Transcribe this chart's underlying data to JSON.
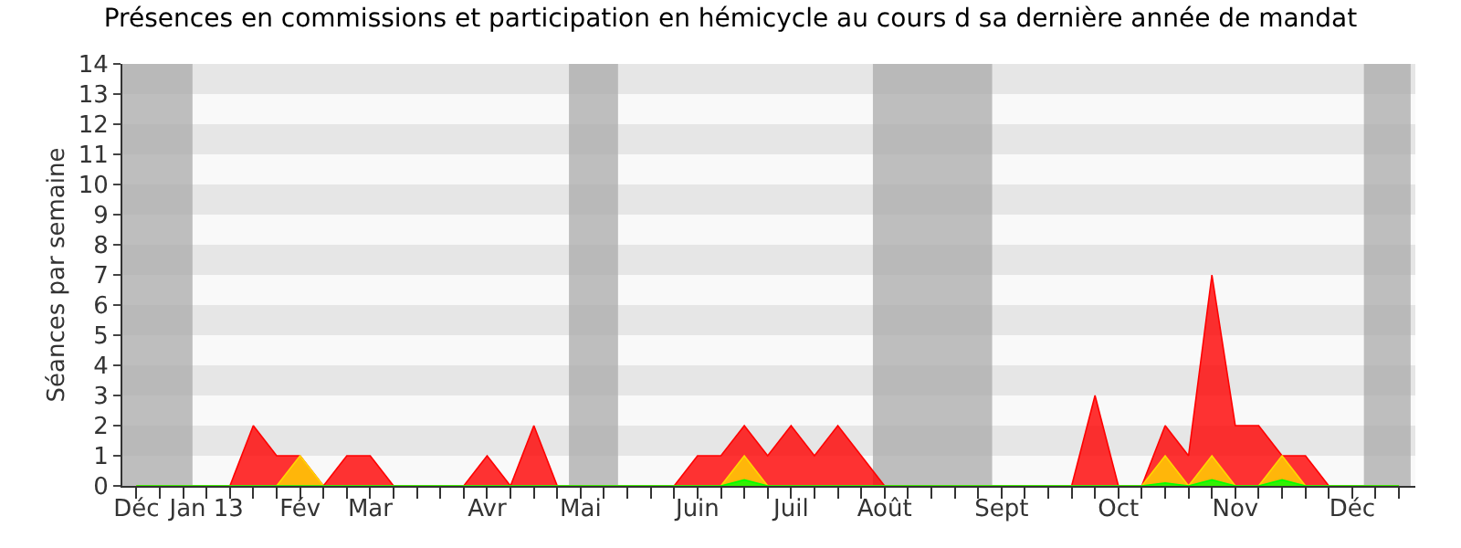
{
  "chart_data": {
    "type": "area",
    "title": "Présences en commissions et participation en hémicycle au cours d sa dernière année de mandat",
    "ylabel": "Séances par semaine",
    "categories": [
      "Déc",
      null,
      null,
      "Jan 13",
      null,
      null,
      null,
      "Fév",
      null,
      null,
      "Mar",
      null,
      null,
      null,
      null,
      "Avr",
      null,
      null,
      null,
      "Mai",
      null,
      null,
      null,
      null,
      "Juin",
      null,
      null,
      null,
      "Juil",
      null,
      null,
      null,
      "Août",
      null,
      null,
      null,
      null,
      "Sept",
      null,
      null,
      null,
      null,
      "Oct",
      null,
      null,
      null,
      null,
      "Nov",
      null,
      null,
      null,
      null,
      "Déc",
      null,
      null
    ],
    "series": [
      {
        "color": "#ff0000",
        "values": [
          0,
          0,
          0,
          0,
          0,
          2,
          1,
          1,
          0,
          1,
          1,
          0,
          0,
          0,
          0,
          1,
          0,
          2,
          0,
          0,
          0,
          0,
          0,
          0,
          1,
          1,
          2,
          1,
          2,
          1,
          2,
          1,
          0,
          0,
          0,
          0,
          0,
          0,
          0,
          0,
          0,
          3,
          0,
          0,
          2,
          1,
          7,
          2,
          2,
          1,
          1,
          0,
          0,
          0,
          0
        ]
      },
      {
        "color": "#ffd700",
        "values": [
          0,
          0,
          0,
          0,
          0,
          0,
          0,
          1,
          0,
          0,
          0,
          0,
          0,
          0,
          0,
          0,
          0,
          0,
          0,
          0,
          0,
          0,
          0,
          0,
          0,
          0,
          1,
          0,
          0,
          0,
          0,
          0,
          0,
          0,
          0,
          0,
          0,
          0,
          0,
          0,
          0,
          0,
          0,
          0,
          1,
          0,
          1,
          0,
          0,
          1,
          0,
          0,
          0,
          0,
          0
        ]
      },
      {
        "color": "#00ff00",
        "values": [
          0,
          0,
          0,
          0,
          0,
          0,
          0,
          0,
          0,
          0,
          0,
          0,
          0,
          0,
          0,
          0,
          0,
          0,
          0,
          0,
          0,
          0,
          0,
          0,
          0,
          0,
          0.2,
          0,
          0,
          0,
          0,
          0,
          0,
          0,
          0,
          0,
          0,
          0,
          0,
          0,
          0,
          0,
          0,
          0,
          0.1,
          0,
          0.2,
          0,
          0,
          0.2,
          0,
          0,
          0,
          0,
          0
        ]
      }
    ],
    "ylim": [
      0,
      14
    ],
    "yticks": [
      0,
      1,
      2,
      3,
      4,
      5,
      6,
      7,
      8,
      9,
      10,
      11,
      12,
      13,
      14
    ],
    "marker": "none"
  }
}
